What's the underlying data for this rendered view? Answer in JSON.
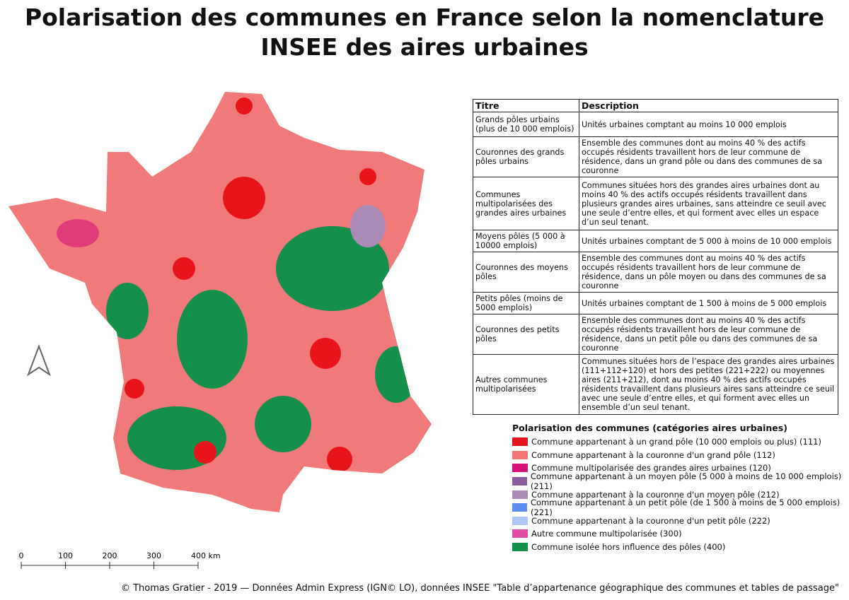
{
  "title": {
    "lines": [
      "Polarisation des communes en France selon la nomenclature",
      "INSEE des aires urbaines"
    ]
  },
  "table": {
    "header": [
      "Titre",
      "Description"
    ],
    "rows": [
      [
        "Grands pôles urbains (plus de 10 000 emplois)",
        "Unités urbaines comptant au moins 10 000 emplois"
      ],
      [
        "Couronnes des grands pôles urbains",
        "Ensemble des communes dont au moins 40 % des actifs occupés résidents travaillent hors de leur commune de résidence, dans un grand pôle ou dans des communes de sa couronne"
      ],
      [
        "Communes multipolarisées des grandes aires urbaines",
        "Communes situées hors des grandes aires urbaines dont au moins 40 % des actifs occupés résidents travaillent dans plusieurs grandes aires urbaines, sans atteindre ce seuil avec une seule d’entre elles, et qui forment avec elles un espace d’un seul tenant."
      ],
      [
        "Moyens pôles (5 000 à 10000 emplois)",
        "Unités urbaines comptant de 5 000 à moins de 10 000 emplois"
      ],
      [
        "Couronnes des moyens pôles",
        "Ensemble des communes dont au moins 40 % des actifs occupés résidents travaillent hors de leur commune de résidence, dans un pôle moyen ou dans des communes de sa couronne"
      ],
      [
        "Petits pôles (moins de 5000 emplois)",
        "Unités urbaines comptant de 1 500 à moins de 5 000 emplois"
      ],
      [
        "Couronnes des petits pôles",
        "Ensemble des communes dont au moins 40 % des actifs occupés résidents travaillent hors de leur commune de résidence, dans un petit pôle ou dans des communes de sa couronne"
      ],
      [
        "Autres communes multipolarisées",
        "Communes situées hors de l’espace des grandes aires urbaines (111+112+120) et hors des petites (221+222) ou moyennes aires (211+212), dont au moins 40 % des actifs occupés résidents travaillent dans plusieurs aires sans atteindre ce seuil avec une seule d’entre elles, et qui forment avec elles un ensemble d’un seul tenant."
      ]
    ]
  },
  "legend": {
    "title": "Polarisation des communes (catégories aires urbaines)",
    "items": [
      {
        "label": "Commune appartenant à un grand pôle (10 000 emplois ou plus) (111)",
        "color": "#e8141c"
      },
      {
        "label": "Commune appartenant à la couronne d'un grand pôle (112)",
        "color": "#f27474"
      },
      {
        "label": "Commune multipolarisée des grandes aires urbaines (120)",
        "color": "#d3127a"
      },
      {
        "label": "Commune appartenant à un moyen pôle (5 000 à moins de 10 000 emplois) (211)",
        "color": "#8a5a9e"
      },
      {
        "label": "Commune appartenant à la couronne d'un moyen pôle (212)",
        "color": "#a98bb5"
      },
      {
        "label": "Commune appartenant à un petit pôle (de 1 500 à moins de 5 000 emplois) (221)",
        "color": "#5b8ef0"
      },
      {
        "label": "Commune appartenant à la couronne d'un petit pôle (222)",
        "color": "#aec6f5"
      },
      {
        "label": "Autre commune multipolarisée (300)",
        "color": "#e04ca6"
      },
      {
        "label": "Commune isolée hors influence des pôles (400)",
        "color": "#15904a"
      }
    ]
  },
  "scale": {
    "labels": [
      "0",
      "100",
      "200",
      "300",
      "400 km"
    ]
  },
  "credit": "© Thomas Gratier - 2019 — Données Admin Express (IGN© LO), données INSEE \"Table d’appartenance géographique des communes et tables de passage\""
}
